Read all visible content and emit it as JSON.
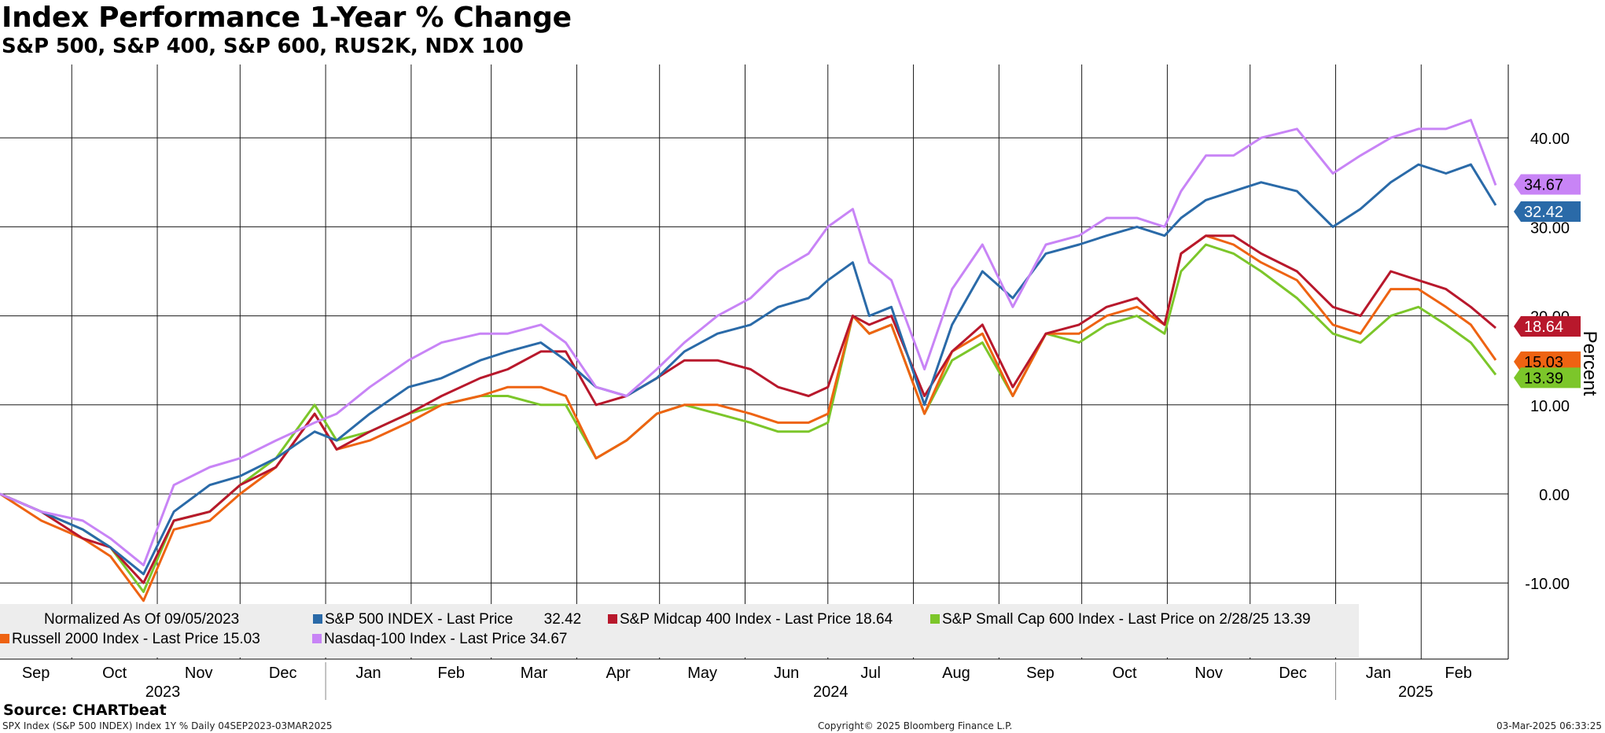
{
  "title": "Index Performance 1-Year % Change",
  "subtitle": "S&P 500, S&P 400, S&P 600, RUS2K, NDX 100",
  "source": "Source: CHARTbeat",
  "footer": {
    "left": "SPX Index (S&P 500 INDEX) Index 1Y %  Daily 04SEP2023-03MAR2025",
    "center": "Copyright© 2025 Bloomberg Finance L.P.",
    "right": "03-Mar-2025 06:33:25"
  },
  "legend": {
    "normalized": "Normalized As Of 09/05/2023",
    "items": [
      {
        "key": "spx",
        "label": "S&P 500 INDEX - Last Price",
        "value": "32.42"
      },
      {
        "key": "mid",
        "label": "S&P Midcap 400 Index - Last Price 18.64",
        "value": ""
      },
      {
        "key": "sml",
        "label": "S&P Small Cap 600 Index - Last Price on 2/28/25 13.39",
        "value": ""
      },
      {
        "key": "rty",
        "label": "Russell 2000 Index - Last Price 15.03",
        "value": ""
      },
      {
        "key": "ndx",
        "label": "Nasdaq-100 Index - Last Price 34.67",
        "value": ""
      }
    ]
  },
  "badges": [
    {
      "key": "ndx",
      "text": "34.67",
      "value": 34.67
    },
    {
      "key": "spx",
      "text": "32.42",
      "value": 32.42
    },
    {
      "key": "mid",
      "text": "18.64",
      "value": 18.64
    },
    {
      "key": "rty",
      "text": "15.03",
      "value": 15.03
    },
    {
      "key": "sml",
      "text": "13.39",
      "value": 13.39
    }
  ],
  "chart_data": {
    "type": "line",
    "ylabel": "Percent",
    "ylim": [
      -18,
      48
    ],
    "yticks": [
      -10,
      0,
      10,
      20,
      30,
      40
    ],
    "ytick_labels": [
      "-10.00",
      "0.00",
      "10.00",
      "20.00",
      "30.00",
      "40.00"
    ],
    "grid": true,
    "legend_position": "bottom-left",
    "x_months": [
      "Sep",
      "Oct",
      "Nov",
      "Dec",
      "Jan",
      "Feb",
      "Mar",
      "Apr",
      "May",
      "Jun",
      "Jul",
      "Aug",
      "Sep",
      "Oct",
      "Nov",
      "Dec",
      "Jan",
      "Feb"
    ],
    "x_years": [
      "2023",
      "2024",
      "2025"
    ],
    "x": [
      "2023-09-05",
      "2023-09-20",
      "2023-10-05",
      "2023-10-15",
      "2023-10-27",
      "2023-11-07",
      "2023-11-20",
      "2023-12-01",
      "2023-12-14",
      "2023-12-28",
      "2024-01-05",
      "2024-01-17",
      "2024-01-31",
      "2024-02-12",
      "2024-02-26",
      "2024-03-07",
      "2024-03-19",
      "2024-03-28",
      "2024-04-08",
      "2024-04-19",
      "2024-04-30",
      "2024-05-10",
      "2024-05-22",
      "2024-06-03",
      "2024-06-13",
      "2024-06-24",
      "2024-07-01",
      "2024-07-10",
      "2024-07-16",
      "2024-07-24",
      "2024-08-05",
      "2024-08-15",
      "2024-08-26",
      "2024-09-06",
      "2024-09-18",
      "2024-09-30",
      "2024-10-10",
      "2024-10-21",
      "2024-10-31",
      "2024-11-06",
      "2024-11-15",
      "2024-11-25",
      "2024-12-05",
      "2024-12-18",
      "2024-12-31",
      "2025-01-10",
      "2025-01-21",
      "2025-01-31",
      "2025-02-10",
      "2025-02-19",
      "2025-02-28"
    ],
    "series": [
      {
        "name": "S&P 500 INDEX",
        "color": "#2a6aa8",
        "values": [
          0,
          -2,
          -4,
          -6,
          -9,
          -2,
          1,
          2,
          4,
          7,
          6,
          9,
          12,
          13,
          15,
          16,
          17,
          15,
          12,
          11,
          13,
          16,
          18,
          19,
          21,
          22,
          24,
          26,
          20,
          21,
          10,
          19,
          25,
          22,
          27,
          28,
          29,
          30,
          29,
          31,
          33,
          34,
          35,
          34,
          30,
          32,
          35,
          37,
          36,
          37,
          32.42
        ]
      },
      {
        "name": "S&P Midcap 400 Index",
        "color": "#b8182c",
        "values": [
          0,
          -2,
          -5,
          -6,
          -10,
          -3,
          -2,
          1,
          3,
          9,
          5,
          7,
          9,
          11,
          13,
          14,
          16,
          16,
          10,
          11,
          13,
          15,
          15,
          14,
          12,
          11,
          12,
          20,
          19,
          20,
          11,
          16,
          19,
          12,
          18,
          19,
          21,
          22,
          19,
          27,
          29,
          29,
          27,
          25,
          21,
          20,
          25,
          24,
          23,
          21,
          18.64
        ]
      },
      {
        "name": "S&P Small Cap 600 Index",
        "color": "#7cc62a",
        "values": [
          0,
          -2,
          -4,
          -6,
          -11,
          -3,
          -2,
          1,
          4,
          10,
          6,
          7,
          9,
          10,
          11,
          11,
          10,
          10,
          4,
          6,
          9,
          10,
          9,
          8,
          7,
          7,
          8,
          20,
          18,
          19,
          9,
          15,
          17,
          11,
          18,
          17,
          19,
          20,
          18,
          25,
          28,
          27,
          25,
          22,
          18,
          17,
          20,
          21,
          19,
          17,
          13.39
        ]
      },
      {
        "name": "Russell 2000 Index",
        "color": "#ee6312",
        "values": [
          0,
          -3,
          -5,
          -7,
          -12,
          -4,
          -3,
          0,
          3,
          9,
          5,
          6,
          8,
          10,
          11,
          12,
          12,
          11,
          4,
          6,
          9,
          10,
          10,
          9,
          8,
          8,
          9,
          20,
          18,
          19,
          9,
          16,
          18,
          11,
          18,
          18,
          20,
          21,
          19,
          27,
          29,
          28,
          26,
          24,
          19,
          18,
          23,
          23,
          21,
          19,
          15.03
        ]
      },
      {
        "name": "Nasdaq-100 Index",
        "color": "#c884f6",
        "values": [
          0,
          -2,
          -3,
          -5,
          -8,
          1,
          3,
          4,
          6,
          8,
          9,
          12,
          15,
          17,
          18,
          18,
          19,
          17,
          12,
          11,
          14,
          17,
          20,
          22,
          25,
          27,
          30,
          32,
          26,
          24,
          14,
          23,
          28,
          21,
          28,
          29,
          31,
          31,
          30,
          34,
          38,
          38,
          40,
          41,
          36,
          38,
          40,
          41,
          41,
          42,
          34.67
        ]
      }
    ]
  }
}
